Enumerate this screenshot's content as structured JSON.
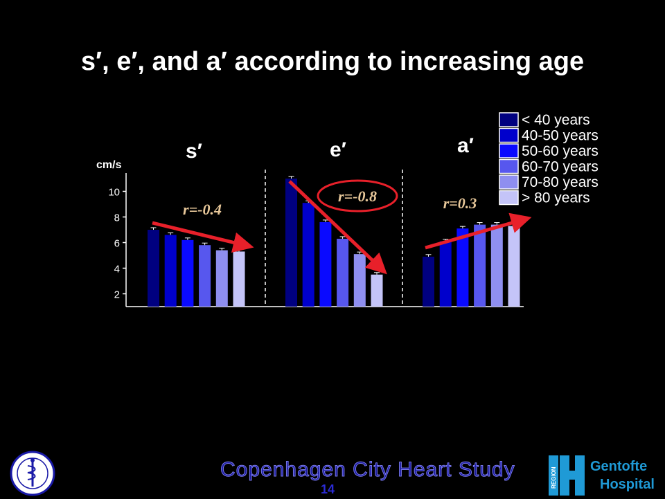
{
  "title": "s′, e′, and a′ according to increasing age",
  "chart_data": {
    "type": "bar",
    "ylabel": "cm/s",
    "ylim": [
      1,
      11
    ],
    "yticks": [
      2,
      4,
      6,
      8,
      10
    ],
    "groups": [
      "s′",
      "e′",
      "a′"
    ],
    "series": [
      {
        "name": "< 40 years",
        "color": "#000080",
        "values": [
          7.0,
          11.0,
          4.9
        ]
      },
      {
        "name": "40-50 years",
        "color": "#0000cc",
        "values": [
          6.6,
          9.1,
          6.1
        ]
      },
      {
        "name": "50-60 years",
        "color": "#0a0aff",
        "values": [
          6.2,
          7.6,
          7.1
        ]
      },
      {
        "name": "60-70 years",
        "color": "#5757ee",
        "values": [
          5.8,
          6.3,
          7.4
        ]
      },
      {
        "name": "70-80 years",
        "color": "#8f8ff0",
        "values": [
          5.4,
          5.1,
          7.4
        ]
      },
      {
        "name": "> 80 years",
        "color": "#c4c4f8",
        "values": [
          5.3,
          3.5,
          7.3
        ]
      }
    ],
    "annotations": [
      {
        "group": 0,
        "text": "r=-0.4",
        "circled": false
      },
      {
        "group": 1,
        "text": "r=-0.8",
        "circled": true
      },
      {
        "group": 2,
        "text": "r=0.3",
        "circled": false
      }
    ],
    "annotation_color": "#e8c89a",
    "trend_color": "#e8202a"
  },
  "footer": {
    "study": "Copenhagen City Heart Study",
    "page_number": "14",
    "hospital_line1": "Gentofte",
    "hospital_line2": "Hospital",
    "region_label": "REGION"
  }
}
